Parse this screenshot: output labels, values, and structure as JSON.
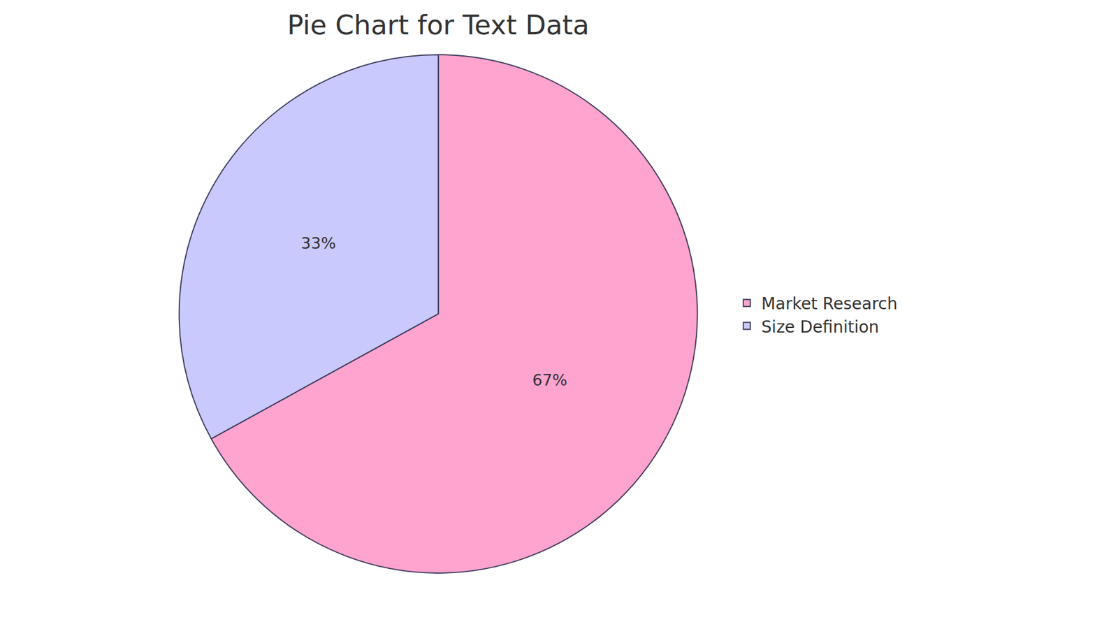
{
  "chart_data": {
    "type": "pie",
    "title": "Pie Chart for Text Data",
    "categories": [
      "Market Research",
      "Size Definition"
    ],
    "values": [
      67,
      33
    ],
    "value_labels": [
      "67%",
      "33%"
    ],
    "colors": [
      "#ffa3cf",
      "#c9c9fd"
    ],
    "data_labels": true,
    "legend": "right"
  }
}
